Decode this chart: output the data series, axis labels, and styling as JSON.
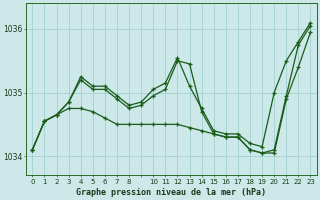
{
  "title": "Graphe pression niveau de la mer (hPa)",
  "bg_color": "#cce8e8",
  "grid_color": "#99cccc",
  "line_color": "#1a5c1a",
  "ylim": [
    1033.7,
    1036.4
  ],
  "yticks": [
    1034,
    1035,
    1036
  ],
  "series_A": [
    1034.1,
    1034.55,
    1034.65,
    1034.85,
    1035.25,
    1035.1,
    1035.1,
    1034.95,
    1034.8,
    1034.85,
    1035.05,
    1035.15,
    1035.55,
    1035.1,
    1034.75,
    1034.4,
    1034.35,
    1034.35,
    1034.2,
    1034.15,
    1035.0,
    1035.5,
    1035.8,
    1036.1
  ],
  "series_B": [
    1034.1,
    1034.55,
    1034.65,
    1034.85,
    1035.2,
    1035.05,
    1035.05,
    1034.9,
    1034.75,
    1034.8,
    1034.95,
    1035.05,
    1035.5,
    1035.45,
    1034.7,
    1034.35,
    1034.3,
    1034.3,
    1034.1,
    1034.05,
    1034.1,
    1034.95,
    1035.75,
    1036.05
  ],
  "series_C": [
    1034.1,
    1034.55,
    1034.65,
    1034.75,
    1034.75,
    1034.7,
    1034.6,
    1034.5,
    1034.5,
    1034.5,
    1034.5,
    1034.5,
    1034.5,
    1034.45,
    1034.4,
    1034.35,
    1034.3,
    1034.3,
    1034.1,
    1034.05,
    1034.05,
    1034.9,
    1035.4,
    1035.95
  ],
  "xtick_labels": [
    "0",
    "1",
    "2",
    "3",
    "4",
    "5",
    "6",
    "7",
    "8",
    "",
    "10",
    "11",
    "12",
    "13",
    "14",
    "15",
    "16",
    "17",
    "18",
    "19",
    "20",
    "21",
    "22",
    "23"
  ],
  "xlabel_fontsize": 6.0,
  "ytick_fontsize": 5.5,
  "xtick_fontsize": 5.0
}
